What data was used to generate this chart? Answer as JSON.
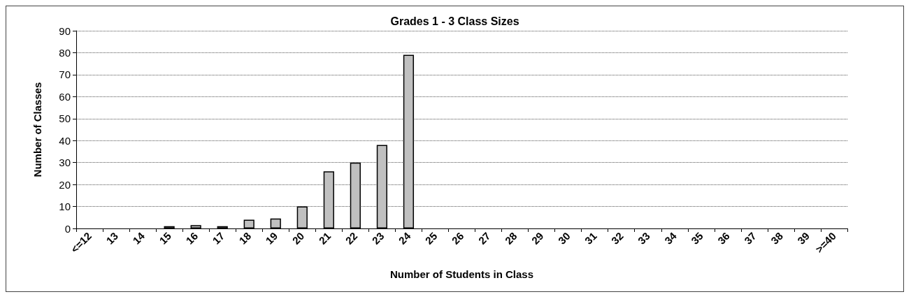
{
  "chart_data": {
    "type": "bar",
    "title": "Grades 1 - 3 Class Sizes",
    "xlabel": "Number of Students in Class",
    "ylabel": "Number of Classes",
    "categories": [
      "<=12",
      "13",
      "14",
      "15",
      "16",
      "17",
      "18",
      "19",
      "20",
      "21",
      "22",
      "23",
      "24",
      "25",
      "26",
      "27",
      "28",
      "29",
      "30",
      "31",
      "32",
      "33",
      "34",
      "35",
      "36",
      "37",
      "38",
      "39",
      ">=40"
    ],
    "values": [
      0,
      0,
      0,
      1,
      1.5,
      1,
      4,
      4.5,
      10,
      26,
      30,
      38,
      79,
      0,
      0,
      0,
      0,
      0,
      0,
      0,
      0,
      0,
      0,
      0,
      0,
      0,
      0,
      0,
      0
    ],
    "color": "#c0c0c0",
    "ylim": [
      0,
      90
    ],
    "yticks": [
      0,
      10,
      20,
      30,
      40,
      50,
      60,
      70,
      80,
      90
    ],
    "grid": "y"
  }
}
